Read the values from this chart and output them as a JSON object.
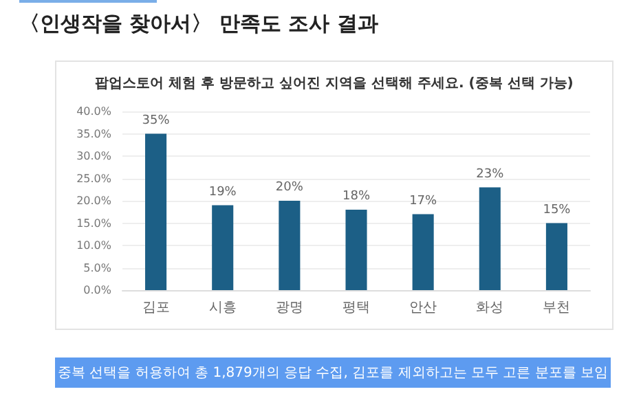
{
  "chart_data": {
    "type": "bar",
    "title": "〈인생작을 찾아서〉 만족도 조사 결과",
    "subtitle": "팝업스토어 체험 후 방문하고 싶어진 지역을 선택해 주세요. (중복 선택 가능)",
    "categories": [
      "김포",
      "시흥",
      "광명",
      "평택",
      "안산",
      "화성",
      "부천"
    ],
    "values": [
      35,
      19,
      20,
      18,
      17,
      23,
      15
    ],
    "value_labels": [
      "35%",
      "19%",
      "20%",
      "18%",
      "17%",
      "23%",
      "15%"
    ],
    "color": "#1c5f86",
    "ylim": [
      0,
      40
    ],
    "yticks": [
      {
        "value": 0,
        "label": "0.0%"
      },
      {
        "value": 5,
        "label": "5.0%"
      },
      {
        "value": 10,
        "label": "10.0%"
      },
      {
        "value": 15,
        "label": "15.0%"
      },
      {
        "value": 20,
        "label": "20.0%"
      },
      {
        "value": 25,
        "label": "25.0%"
      },
      {
        "value": 30,
        "label": "30.0%"
      },
      {
        "value": 35,
        "label": "35.0%"
      },
      {
        "value": 40,
        "label": "40.0%"
      }
    ],
    "grid": "y",
    "annotations": [
      "중복 선택을 허용하여 총 1,879개의 응답 수집, 김포를 제외하고는 모두 고른 분포를 보임"
    ]
  }
}
